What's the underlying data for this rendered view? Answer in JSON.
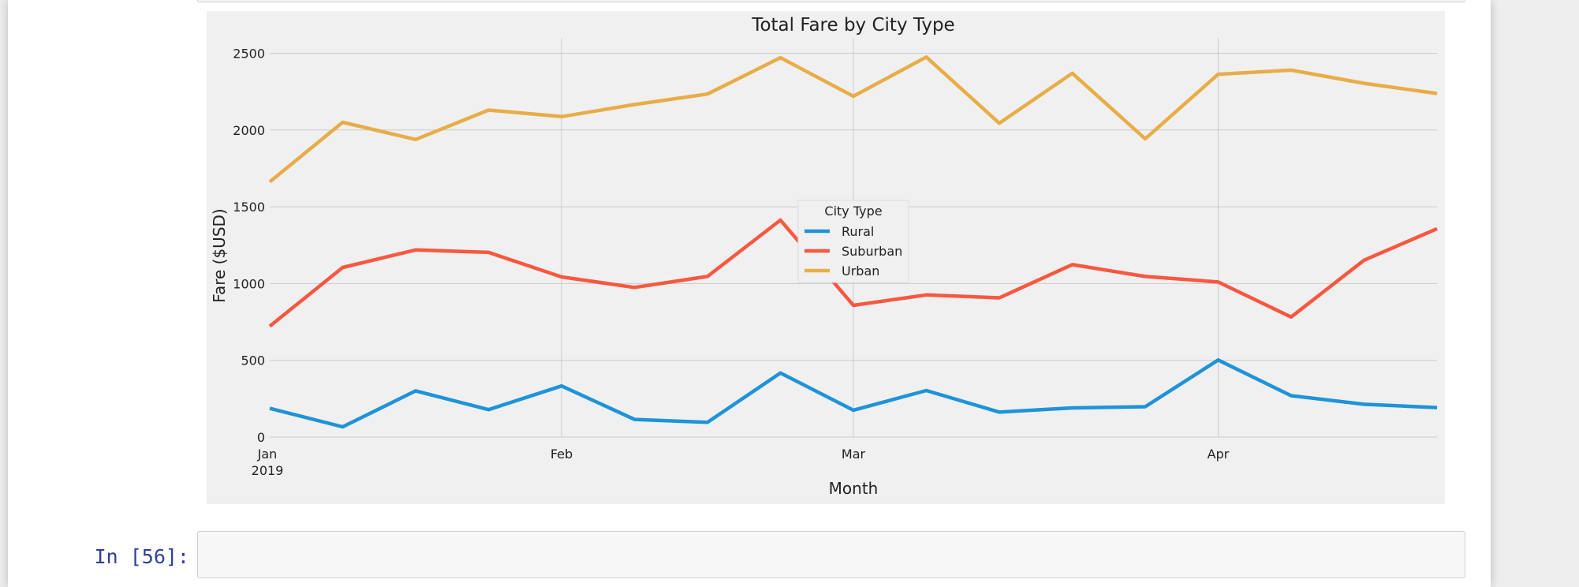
{
  "cell": {
    "next_prompt": "In [56]:"
  },
  "colors": {
    "Rural": "#1f93d9",
    "Suburban": "#f75840",
    "Urban": "#e8ad48",
    "plot_bg": "#f0f0f0",
    "grid": "#cbcbcb"
  },
  "chart_data": {
    "type": "line",
    "title": "Total Fare by City Type",
    "xlabel": "Month",
    "ylabel": "Fare ($USD)",
    "x": [
      "2019-01-06",
      "2019-01-13",
      "2019-01-20",
      "2019-01-27",
      "2019-02-03",
      "2019-02-10",
      "2019-02-17",
      "2019-02-24",
      "2019-03-03",
      "2019-03-10",
      "2019-03-17",
      "2019-03-24",
      "2019-03-31",
      "2019-04-07",
      "2019-04-14",
      "2019-04-21",
      "2019-04-28"
    ],
    "xlim": [
      "2019-01-06",
      "2019-04-28"
    ],
    "x_ticks": [
      {
        "date": "2019-02-03",
        "label": "Feb",
        "sublabel": ""
      },
      {
        "date": "2019-03-03",
        "label": "Mar",
        "sublabel": ""
      },
      {
        "date": "2019-04-07",
        "label": "Apr",
        "sublabel": ""
      }
    ],
    "x_first_tick": {
      "date": "2019-01-06",
      "label": "Jan",
      "sublabel": "2019"
    },
    "ylim": [
      0,
      2600
    ],
    "y_ticks": [
      0,
      500,
      1000,
      1500,
      2000,
      2500
    ],
    "grid": true,
    "legend": {
      "title": "City Type",
      "placement": "center"
    },
    "series": [
      {
        "name": "Rural",
        "values": [
          187,
          67,
          301,
          179,
          333,
          115,
          96,
          418,
          175,
          303,
          163,
          190,
          198,
          502,
          270,
          214,
          192
        ]
      },
      {
        "name": "Suburban",
        "values": [
          722,
          1105,
          1219,
          1203,
          1043,
          975,
          1046,
          1413,
          858,
          926,
          907,
          1123,
          1046,
          1010,
          782,
          1152,
          1357
        ]
      },
      {
        "name": "Urban",
        "values": [
          1662,
          2050,
          1938,
          2130,
          2087,
          2166,
          2234,
          2471,
          2220,
          2475,
          2044,
          2370,
          1943,
          2363,
          2390,
          2304,
          2238
        ]
      }
    ]
  }
}
